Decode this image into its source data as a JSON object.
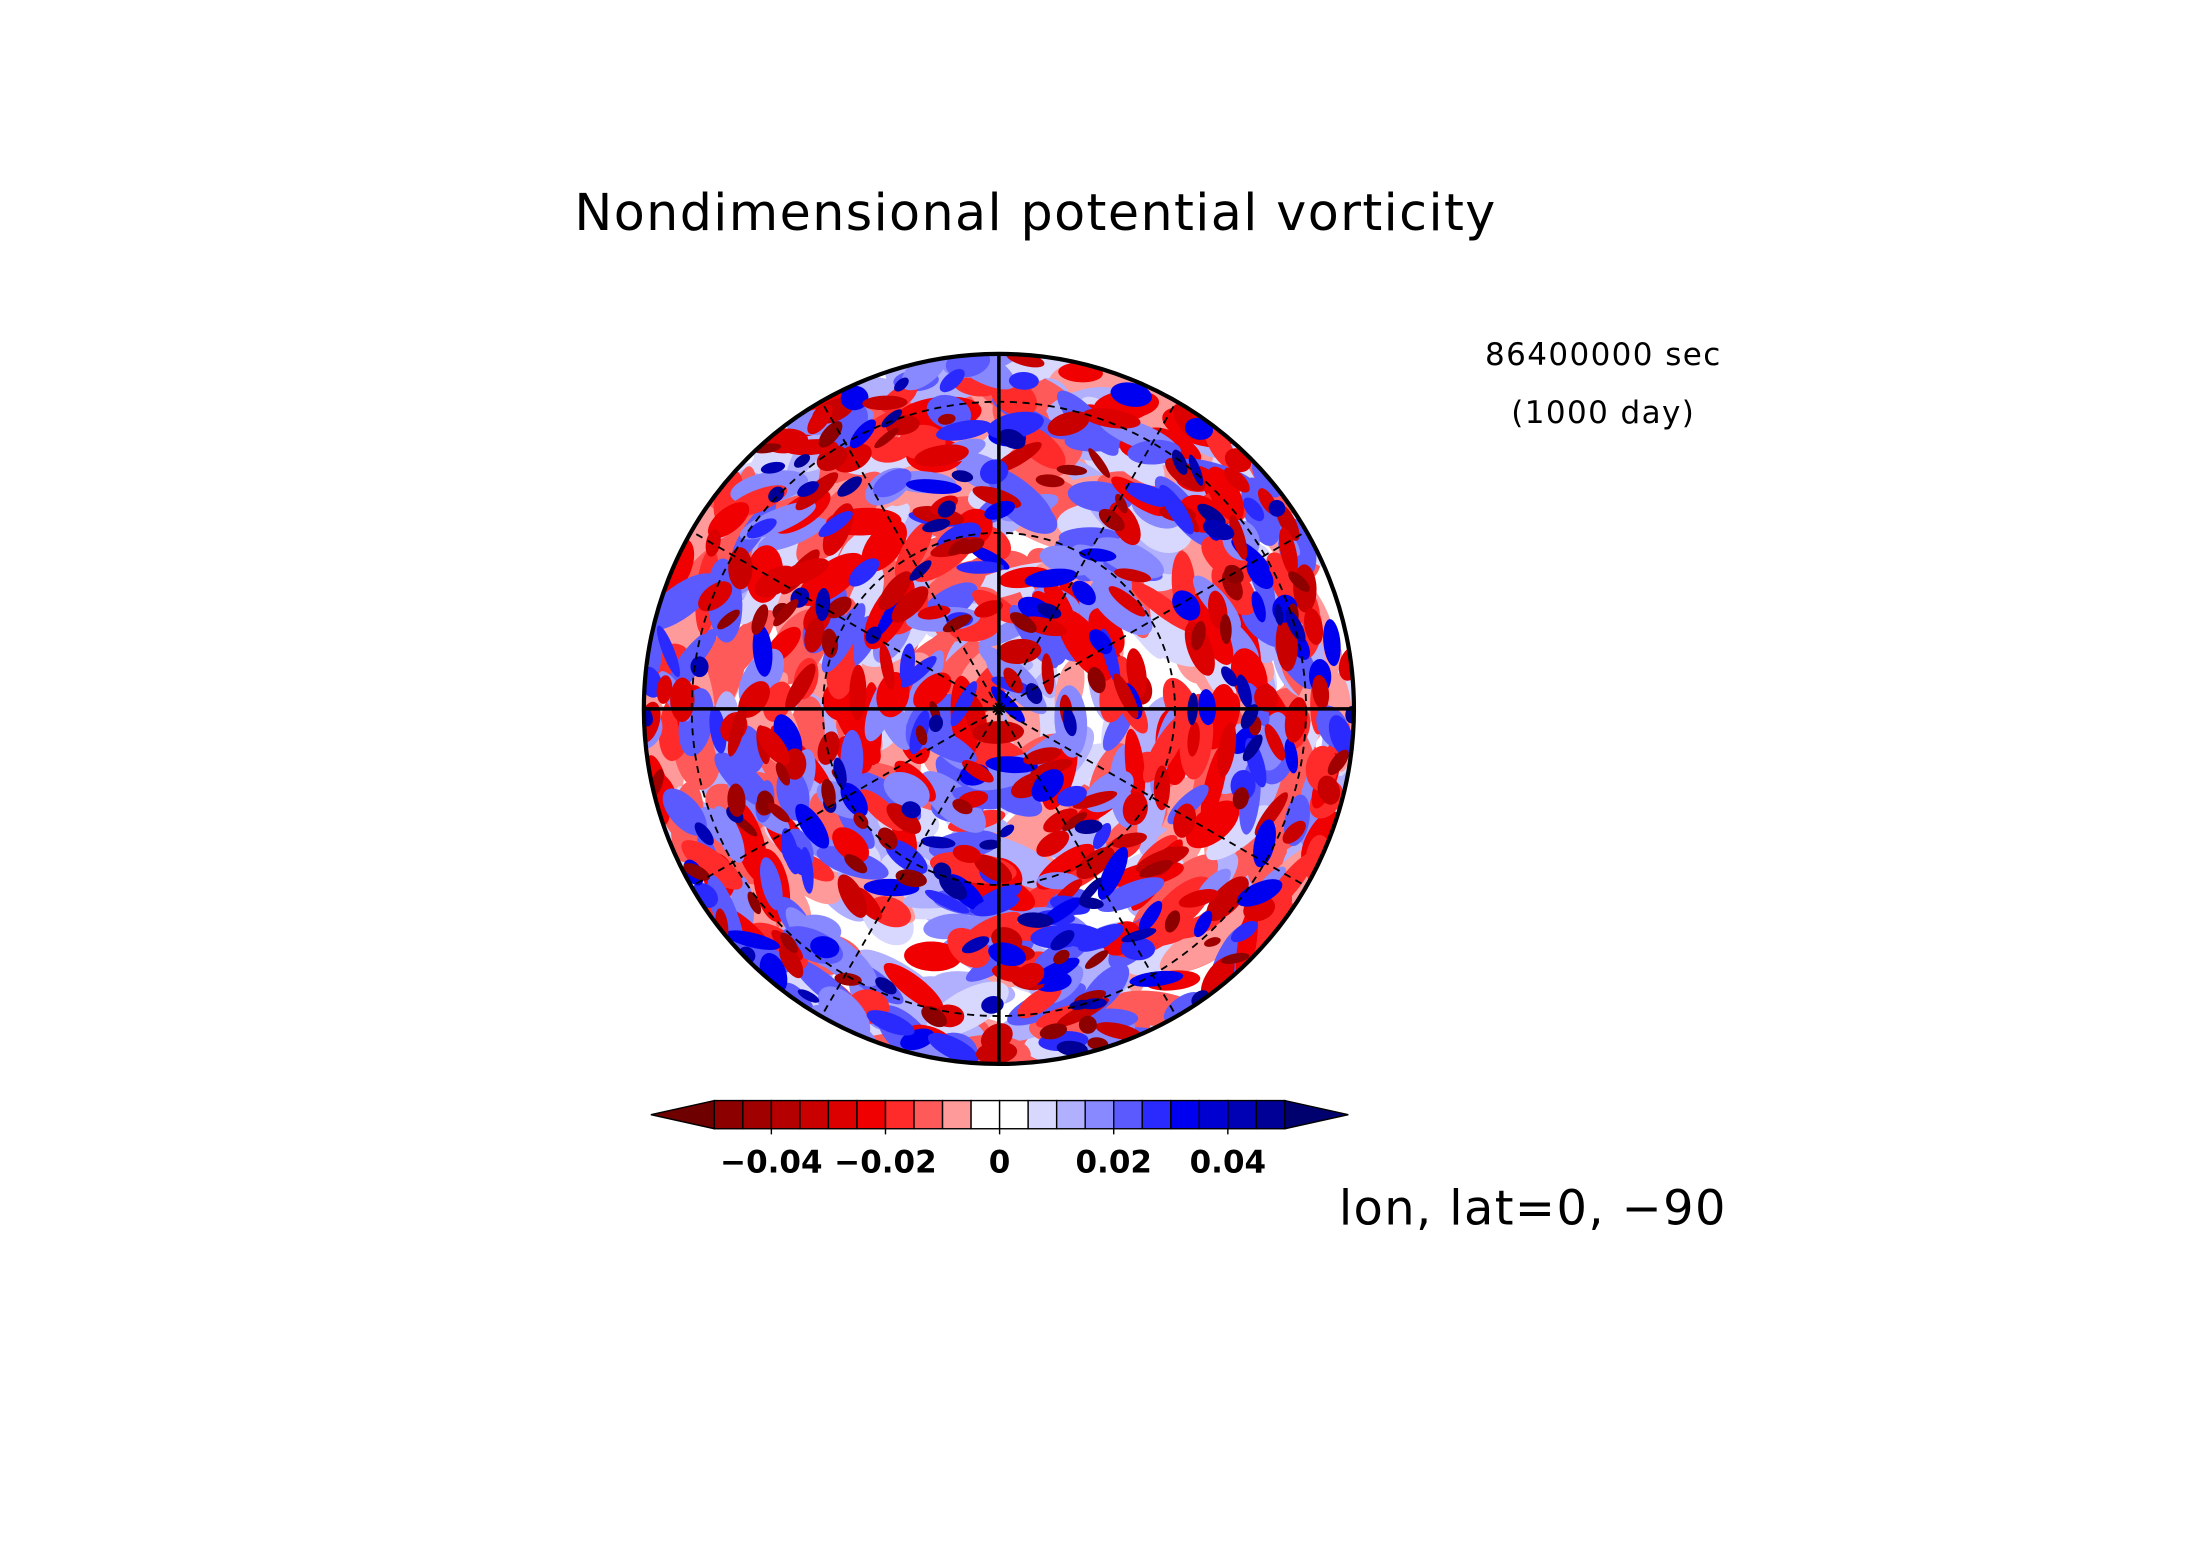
{
  "chart_data": {
    "type": "polar_contour",
    "title": "Nondimensional potential vorticity",
    "annotations": [
      "86400000 sec",
      "(1000 day)",
      "lon, lat=0, −90"
    ],
    "levels": [
      -0.05,
      -0.045,
      -0.04,
      -0.035,
      -0.03,
      -0.025,
      -0.02,
      -0.015,
      -0.01,
      -0.005,
      0,
      0.005,
      0.01,
      0.015,
      0.02,
      0.025,
      0.03,
      0.035,
      0.04,
      0.045,
      0.05
    ],
    "colors": [
      "#6e0000",
      "#8c0000",
      "#a00000",
      "#b40000",
      "#c80000",
      "#dc0000",
      "#f00000",
      "#ff2a2a",
      "#ff5a5a",
      "#ff9a9a",
      "#ffffff",
      "#ffffff",
      "#d8d8ff",
      "#b0b0ff",
      "#8888ff",
      "#5a5aff",
      "#2a2aff",
      "#0000f0",
      "#0000d0",
      "#0000b4",
      "#000096",
      "#00006e"
    ],
    "colorbar_ticks": [
      {
        "value": -0.04,
        "label": "−0.04"
      },
      {
        "value": -0.02,
        "label": "−0.02"
      },
      0,
      0.02,
      0.04
    ]
  }
}
